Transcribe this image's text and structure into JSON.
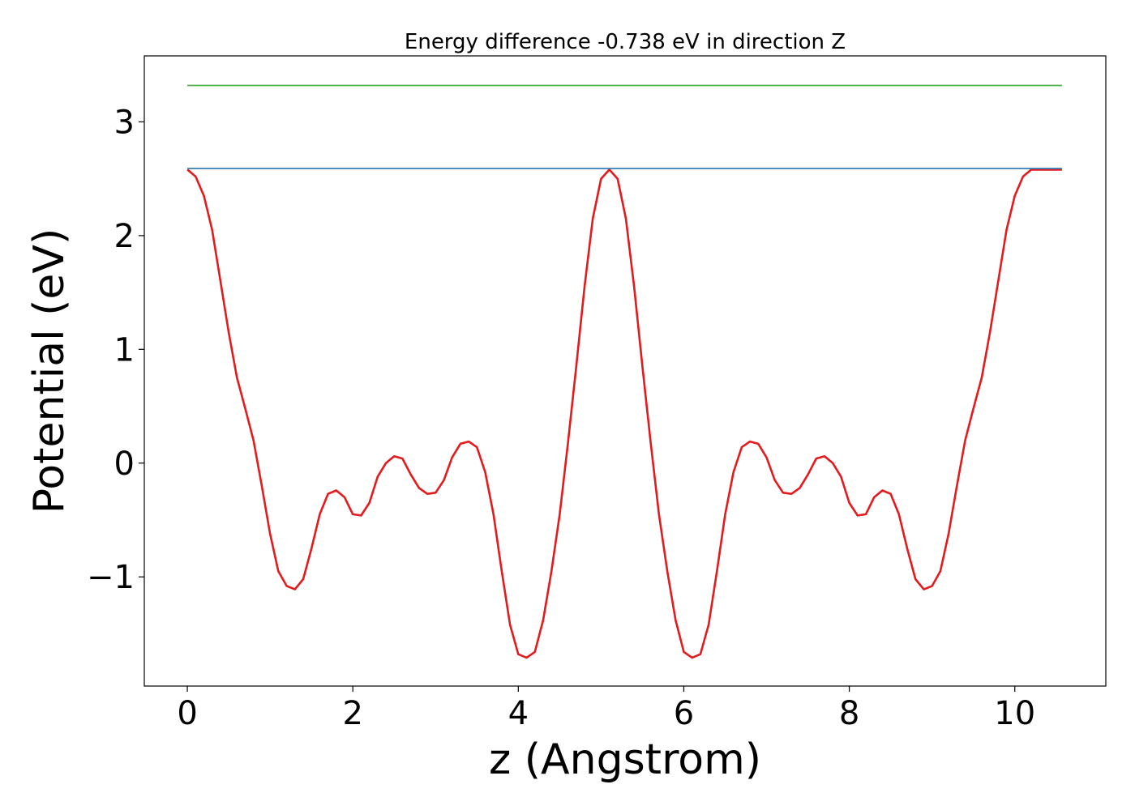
{
  "chart_data": {
    "type": "line",
    "title": "Energy difference -0.738 eV in direction Z",
    "xlabel": "z (Angstrom)",
    "ylabel": "Potential (eV)",
    "xlim": [
      -0.52,
      11.1
    ],
    "ylim": [
      -1.96,
      3.58
    ],
    "xticks": [
      0,
      2,
      4,
      6,
      8,
      10
    ],
    "yticks": [
      -1,
      0,
      1,
      2,
      3
    ],
    "xtick_labels": [
      "0",
      "2",
      "4",
      "6",
      "8",
      "10"
    ],
    "ytick_labels": [
      "−1",
      "0",
      "1",
      "2",
      "3"
    ],
    "grid": false,
    "series": [
      {
        "color": "#e41a1c",
        "x": [
          0,
          0.1,
          0.2,
          0.3,
          0.4,
          0.5,
          0.6,
          0.7,
          0.8,
          0.9,
          1.0,
          1.1,
          1.2,
          1.3,
          1.4,
          1.5,
          1.6,
          1.7,
          1.8,
          1.9,
          2.0,
          2.1,
          2.2,
          2.3,
          2.4,
          2.5,
          2.6,
          2.7,
          2.8,
          2.9,
          3.0,
          3.1,
          3.2,
          3.3,
          3.4,
          3.5,
          3.6,
          3.7,
          3.8,
          3.9,
          4.0,
          4.1,
          4.2,
          4.3,
          4.4,
          4.5,
          4.6,
          4.7,
          4.8,
          4.9,
          5.0,
          5.1,
          5.2,
          5.3,
          5.4,
          5.5,
          5.6,
          5.7,
          5.8,
          5.9,
          6.0,
          6.1,
          6.2,
          6.3,
          6.4,
          6.5,
          6.6,
          6.7,
          6.8,
          6.9,
          7.0,
          7.1,
          7.2,
          7.3,
          7.4,
          7.5,
          7.6,
          7.7,
          7.8,
          7.9,
          8.0,
          8.1,
          8.2,
          8.3,
          8.4,
          8.5,
          8.6,
          8.7,
          8.8,
          8.9,
          9.0,
          9.1,
          9.2,
          9.3,
          9.4,
          9.5,
          9.6,
          9.7,
          9.8,
          9.9,
          10.0,
          10.1,
          10.2,
          10.3,
          10.4,
          10.5,
          10.57
        ],
        "y": [
          2.58,
          2.52,
          2.35,
          2.05,
          1.6,
          1.15,
          0.75,
          0.48,
          0.2,
          -0.2,
          -0.62,
          -0.95,
          -1.08,
          -1.11,
          -1.02,
          -0.75,
          -0.45,
          -0.27,
          -0.24,
          -0.3,
          -0.45,
          -0.46,
          -0.35,
          -0.12,
          0.0,
          0.06,
          0.04,
          -0.1,
          -0.22,
          -0.27,
          -0.26,
          -0.15,
          0.05,
          0.17,
          0.19,
          0.14,
          -0.08,
          -0.45,
          -0.95,
          -1.42,
          -1.68,
          -1.71,
          -1.66,
          -1.38,
          -0.95,
          -0.45,
          0.18,
          0.85,
          1.55,
          2.15,
          2.5,
          2.58,
          2.5,
          2.15,
          1.55,
          0.85,
          0.18,
          -0.45,
          -0.95,
          -1.38,
          -1.66,
          -1.71,
          -1.68,
          -1.42,
          -0.95,
          -0.45,
          -0.08,
          0.14,
          0.19,
          0.17,
          0.05,
          -0.15,
          -0.26,
          -0.27,
          -0.22,
          -0.1,
          0.04,
          0.06,
          0.0,
          -0.12,
          -0.35,
          -0.46,
          -0.45,
          -0.3,
          -0.24,
          -0.27,
          -0.45,
          -0.75,
          -1.02,
          -1.11,
          -1.08,
          -0.95,
          -0.62,
          -0.2,
          0.2,
          0.48,
          0.75,
          1.15,
          1.6,
          2.05,
          2.35,
          2.52,
          2.58,
          2.58,
          2.58,
          2.58,
          2.58
        ]
      },
      {
        "color": "#377eb8",
        "x": [
          0,
          10.57
        ],
        "y": [
          2.59,
          2.59
        ]
      },
      {
        "color": "#4daf4a",
        "x": [
          0,
          10.57
        ],
        "y": [
          3.32,
          3.32
        ]
      }
    ]
  }
}
